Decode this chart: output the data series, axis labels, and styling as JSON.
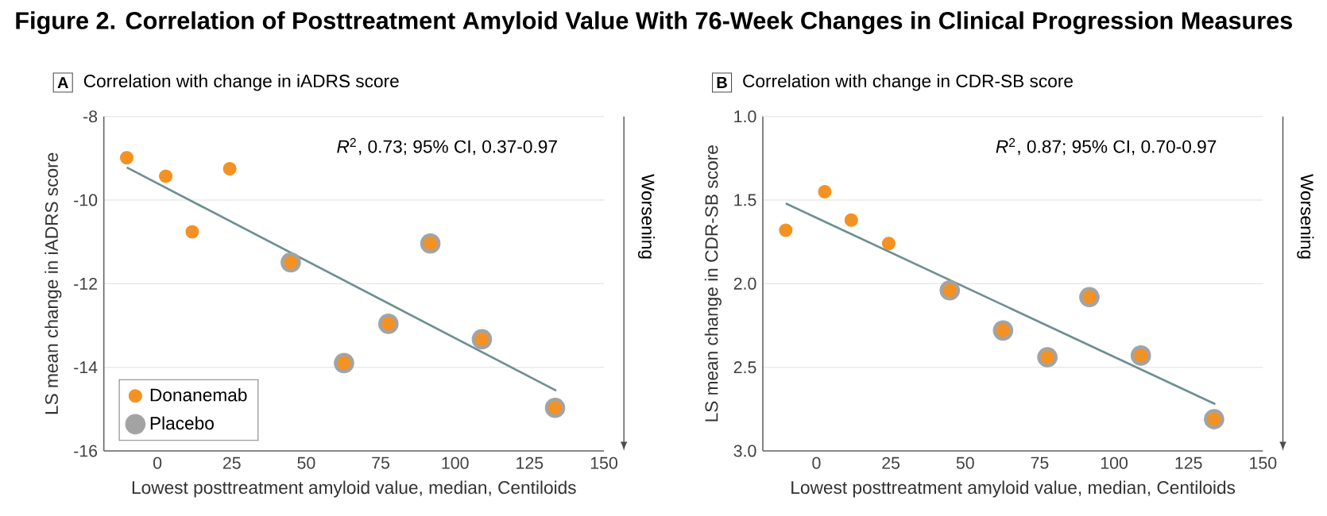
{
  "chart_data": [
    {
      "type": "scatter",
      "title": "Correlation with change in iADRS score",
      "xlabel": "Lowest posttreatment amyloid value, median, Centiloids",
      "ylabel": "LS mean change in iADRS score",
      "xlim": [
        -18,
        150
      ],
      "xticks": [
        0,
        25,
        50,
        75,
        100,
        125,
        150
      ],
      "ylim": [
        -16,
        -8
      ],
      "yticks": [
        -16,
        -14,
        -12,
        -10,
        -8
      ],
      "grid": "y",
      "legend": "bottom left",
      "annotations": [
        "Figure 2.  Correlation of Posttreatment Amyloid Value With 76-Week Changes in Clinical Progression Measures",
        "A",
        "*R*$^{2}$, 0.73; 95% CI, 0.37-0.97",
        "Worsening"
      ],
      "series": [
        {
          "name": "Donanemab",
          "color": "#f39223",
          "marker": "circle",
          "x": [
            -10.3,
            2.8,
            11.7,
            24.3,
            44.8,
            62.7,
            77.6,
            91.7,
            109,
            133.6
          ],
          "values": [
            -8.99,
            -9.43,
            -10.76,
            -9.25,
            -11.49,
            -13.9,
            -12.96,
            -11.04,
            -13.33,
            -14.97
          ]
        },
        {
          "name": "Placebo",
          "color": "#a3a3a3",
          "marker": "circle",
          "x": [
            44.8,
            62.7,
            77.6,
            91.7,
            109,
            133.6
          ],
          "values": [
            -11.49,
            -13.9,
            -12.96,
            -11.04,
            -13.33,
            -14.97
          ]
        },
        {
          "type": "line",
          "color": "#6d8f91",
          "marker": "none",
          "x": [
            -10.3,
            134
          ],
          "values": [
            -9.22,
            -14.56
          ]
        }
      ]
    },
    {
      "type": "scatter",
      "title": "Correlation with change in CDR-SB score",
      "xlabel": "Lowest posttreatment amyloid value, median, Centiloids",
      "ylabel": "LS mean change in CDR-SB score",
      "xlim": [
        -18,
        150
      ],
      "xticks": [
        0,
        25,
        50,
        75,
        100,
        125,
        150
      ],
      "ylim": [
        3.0,
        1.0
      ],
      "yticks": [
        {
          "value": 3,
          "label": "3.0"
        },
        {
          "value": 2.5,
          "label": "2.5"
        },
        {
          "value": 2,
          "label": "2.0"
        },
        {
          "value": 1.5,
          "label": "1.5"
        },
        {
          "value": 1,
          "label": "1.0"
        }
      ],
      "grid": "y",
      "annotations": [
        "B",
        "*R*$^{2}$, 0.87; 95% CI, 0.70-0.97",
        "Worsening"
      ],
      "series": [
        {
          "color": "#f39223",
          "marker": "circle",
          "x": [
            -10.3,
            2.8,
            11.7,
            24.3,
            44.8,
            62.7,
            77.6,
            91.7,
            109,
            133.6
          ],
          "values": [
            1.68,
            1.45,
            1.62,
            1.76,
            2.04,
            2.28,
            2.44,
            2.08,
            2.43,
            2.81
          ]
        },
        {
          "color": "#a3a3a3",
          "marker": "circle",
          "x": [
            44.8,
            62.7,
            77.6,
            91.7,
            109,
            133.6
          ],
          "values": [
            2.04,
            2.28,
            2.44,
            2.08,
            2.43,
            2.81
          ]
        },
        {
          "type": "line",
          "color": "#6d8f91",
          "marker": "none",
          "x": [
            -10.3,
            134
          ],
          "values": [
            1.52,
            2.72
          ]
        }
      ]
    }
  ]
}
